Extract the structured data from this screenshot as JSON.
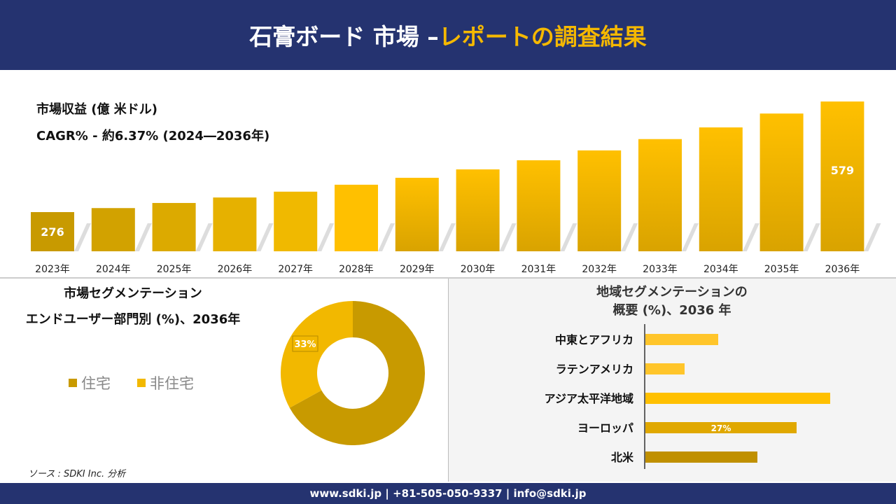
{
  "header": {
    "title_main": "石膏ボード 市場 –",
    "title_accent": "レポートの調査結果"
  },
  "revenue": {
    "title": "市場収益 (億 米ドル)",
    "cagr": "CAGR% - 約6.37% (2024―2036年)"
  },
  "chart_data": [
    {
      "type": "bar",
      "categories": [
        "2023年",
        "2024年",
        "2025年",
        "2026年",
        "2027年",
        "2028年",
        "2029年",
        "2030年",
        "2031年",
        "2032年",
        "2033年",
        "2034年",
        "2035年",
        "2036年"
      ],
      "values": [
        276,
        287,
        301,
        316,
        332,
        351,
        370,
        393,
        418,
        445,
        476,
        508,
        546,
        579
      ],
      "data_labels": {
        "2023年": "276",
        "2036年": "579"
      },
      "ylim": [
        168,
        590
      ],
      "grid": false,
      "colors": {
        "start": "#C89A00",
        "mid": "#FFC000"
      }
    },
    {
      "type": "pie",
      "title_lines": [
        "市場セグメンテーション",
        "エンドユーザー部門別 (%)、2036年"
      ],
      "slices": [
        {
          "name": "住宅",
          "value": 67,
          "color": "#C89A00"
        },
        {
          "name": "非住宅",
          "value": 33,
          "color": "#F2B800",
          "label": "33%"
        }
      ],
      "legend": "left"
    },
    {
      "type": "bar",
      "orientation": "horizontal",
      "title_lines": [
        "地域セグメンテーションの",
        "概要 (%)、2036 年"
      ],
      "categories": [
        "中東とアフリカ",
        "ラテンアメリカ",
        "アジア太平洋地域",
        "ヨーロッパ",
        "北米"
      ],
      "values": [
        13,
        7,
        33,
        27,
        20
      ],
      "data_labels": {
        "ヨーロッパ": "27%"
      },
      "colors": [
        "#FFC52A",
        "#FFC52A",
        "#FFC000",
        "#E0A800",
        "#C09000"
      ]
    }
  ],
  "source": "ソース : SDKI Inc. 分析",
  "footer": "www.sdki.jp | +81-505-050-9337 | info@sdki.jp"
}
